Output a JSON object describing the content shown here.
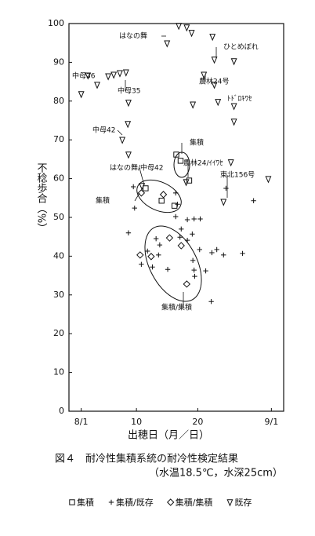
{
  "chart_data": {
    "type": "scatter",
    "caption": "図４　耐冷性集積系統の耐冷性検定結果",
    "subcaption": "（水温18.5℃，水深25cm）",
    "x_label": "出穂日（月／日）",
    "y_label": "不稔歩合（%）",
    "xlim": [
      -1,
      34
    ],
    "xticks": [
      {
        "value": 1,
        "label": "8/1"
      },
      10,
      20,
      {
        "value": 32,
        "label": "9/1"
      }
    ],
    "ylim": [
      0,
      100
    ],
    "yticks": [
      0,
      10,
      20,
      30,
      40,
      50,
      60,
      70,
      80,
      90,
      100
    ],
    "grid": false,
    "legend": "bottom",
    "annotations": [
      "はなの舞",
      "ひとめぼれ",
      "中母36",
      "中母35",
      "農林24号",
      "ﾄﾄﾞﾛｷﾜｾ",
      "中母42",
      "集積",
      "農林24/ｲｲﾜｾ",
      "東北156号",
      "はなの舞/中母42",
      "集積",
      "集積/集積"
    ],
    "series": [
      {
        "name": "集積",
        "color": "#111111",
        "marker": "square",
        "x": [
          16.5,
          17.2,
          11.5,
          14.1,
          16.2,
          18.6
        ],
        "values": [
          66.2,
          64.6,
          57.5,
          54.3,
          53.0,
          59.5
        ]
      },
      {
        "name": "集積/既存",
        "color": "#111111",
        "marker": "plus",
        "x": [
          8.7,
          9.7,
          16.4,
          16.7,
          16.4,
          18.3,
          19.4,
          20.4,
          17.3,
          19.1,
          18.3,
          17.1,
          13.2,
          13.8,
          11.8,
          13.6,
          10.8,
          12.6,
          15.1,
          19.2,
          19.4,
          19.5,
          21.3,
          20.3,
          22.3,
          23.1,
          24.2,
          27.3,
          22.2,
          24.6,
          29.1,
          9.5
        ],
        "values": [
          46.0,
          52.4,
          56.3,
          53.4,
          50.2,
          49.4,
          49.6,
          49.6,
          47.0,
          45.7,
          44.1,
          44.9,
          44.5,
          42.9,
          41.3,
          40.3,
          37.9,
          37.2,
          36.6,
          38.9,
          36.4,
          34.8,
          36.2,
          41.7,
          40.9,
          41.7,
          40.3,
          40.7,
          28.3,
          57.5,
          54.3,
          57.9
        ]
      },
      {
        "name": "集積/集積",
        "color": "#111111",
        "marker": "diamond",
        "x": [
          12.4,
          15.4,
          17.3,
          18.2,
          10.6,
          14.4,
          10.8
        ],
        "values": [
          39.9,
          44.7,
          42.7,
          32.8,
          40.3,
          55.9,
          56.3
        ]
      },
      {
        "name": "既存",
        "color": "#111111",
        "marker": "triangle-down",
        "x": [
          1.0,
          3.6,
          2.1,
          5.4,
          6.3,
          7.3,
          8.3,
          8.7,
          8.6,
          7.7,
          8.7,
          15.0,
          16.9,
          18.2,
          19.0,
          22.4,
          22.7,
          25.9,
          21.0,
          22.7,
          23.3,
          19.2,
          25.9,
          25.9,
          25.4,
          24.2,
          31.5,
          18.1,
          10.9
        ],
        "values": [
          81.8,
          84.2,
          86.6,
          86.4,
          86.8,
          87.2,
          87.4,
          79.6,
          74.1,
          70.0,
          66.2,
          94.9,
          99.4,
          99.0,
          97.6,
          96.6,
          90.7,
          90.3,
          86.8,
          84.2,
          79.8,
          79.1,
          78.7,
          74.7,
          64.2,
          54.0,
          59.9,
          59.1,
          58.1
        ]
      }
    ]
  }
}
